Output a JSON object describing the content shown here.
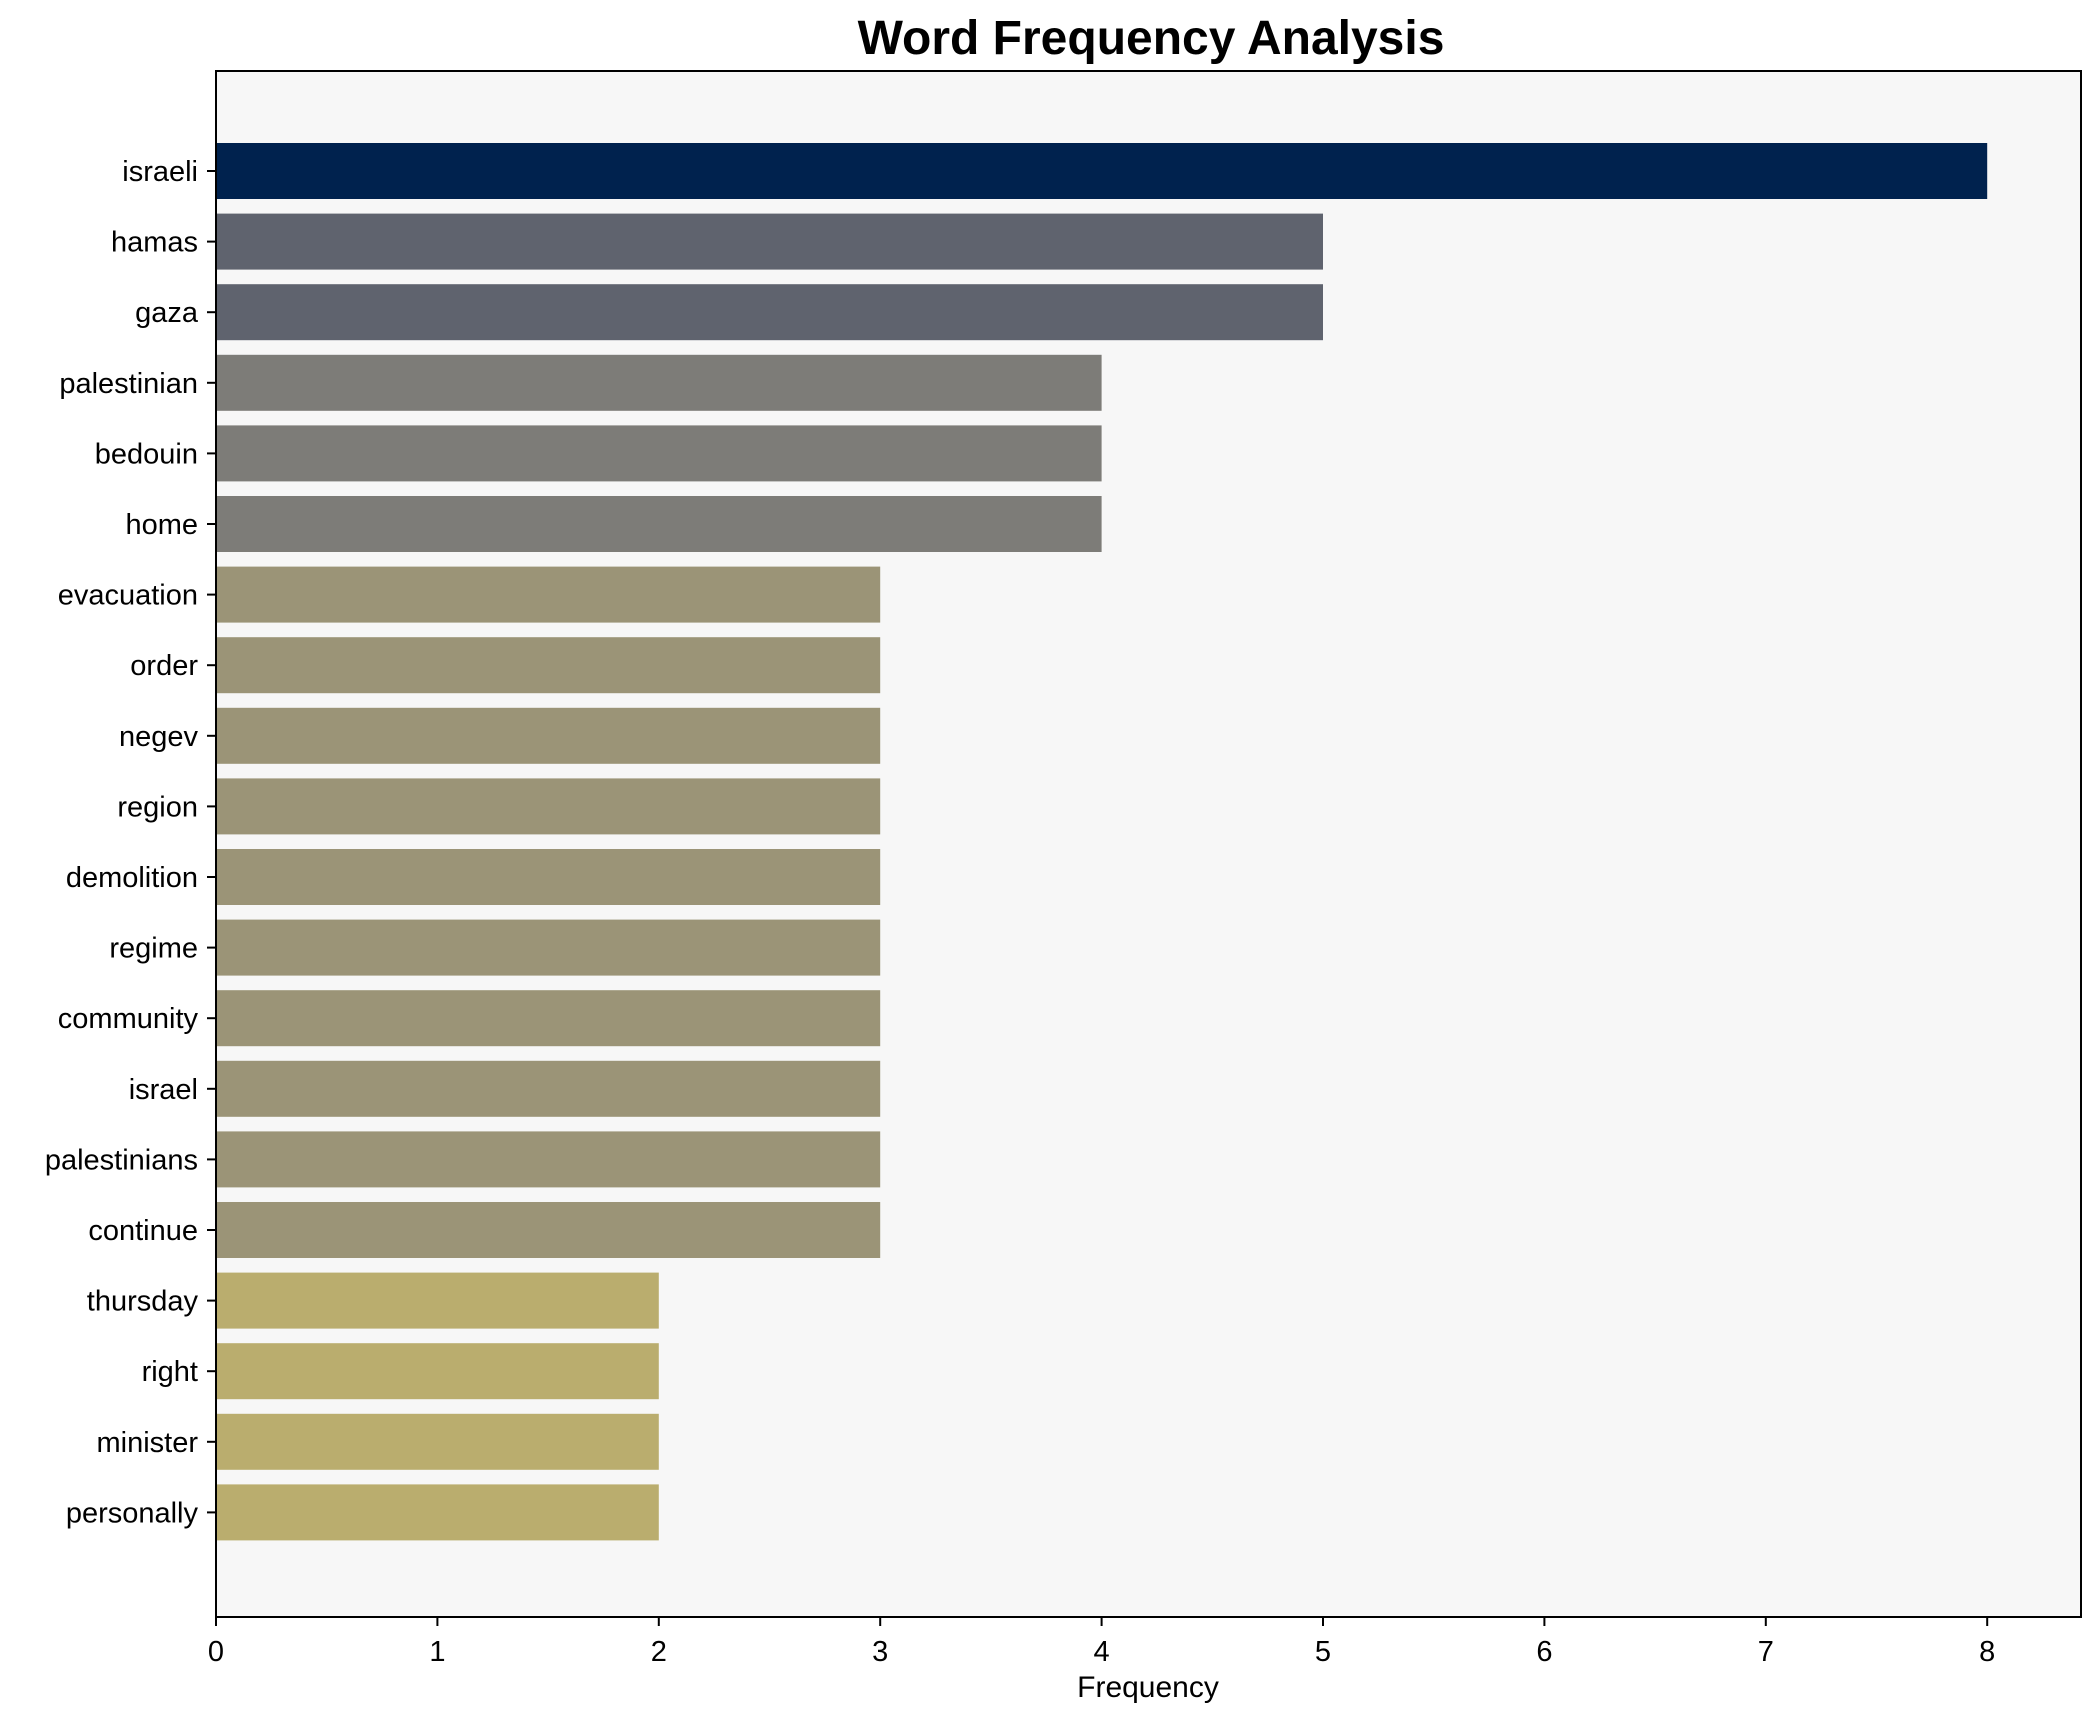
{
  "chart_data": {
    "type": "bar",
    "orientation": "horizontal",
    "title": "Word Frequency Analysis",
    "xlabel": "Frequency",
    "ylabel": "",
    "xlim": [
      0,
      8.4
    ],
    "xticks": [
      0,
      1,
      2,
      3,
      4,
      5,
      6,
      7,
      8
    ],
    "grid": false,
    "background_color": "#f7f7f7",
    "categories": [
      "israeli",
      "hamas",
      "gaza",
      "palestinian",
      "bedouin",
      "home",
      "evacuation",
      "order",
      "negev",
      "region",
      "demolition",
      "regime",
      "community",
      "israel",
      "palestinians",
      "continue",
      "thursday",
      "right",
      "minister",
      "personally"
    ],
    "values": [
      8,
      5,
      5,
      4,
      4,
      4,
      3,
      3,
      3,
      3,
      3,
      3,
      3,
      3,
      3,
      3,
      2,
      2,
      2,
      2
    ],
    "colors": {
      "8": "#00224e",
      "5": "#5f636e",
      "4": "#7d7c78",
      "3": "#9b9477",
      "2": "#baad6e"
    }
  }
}
